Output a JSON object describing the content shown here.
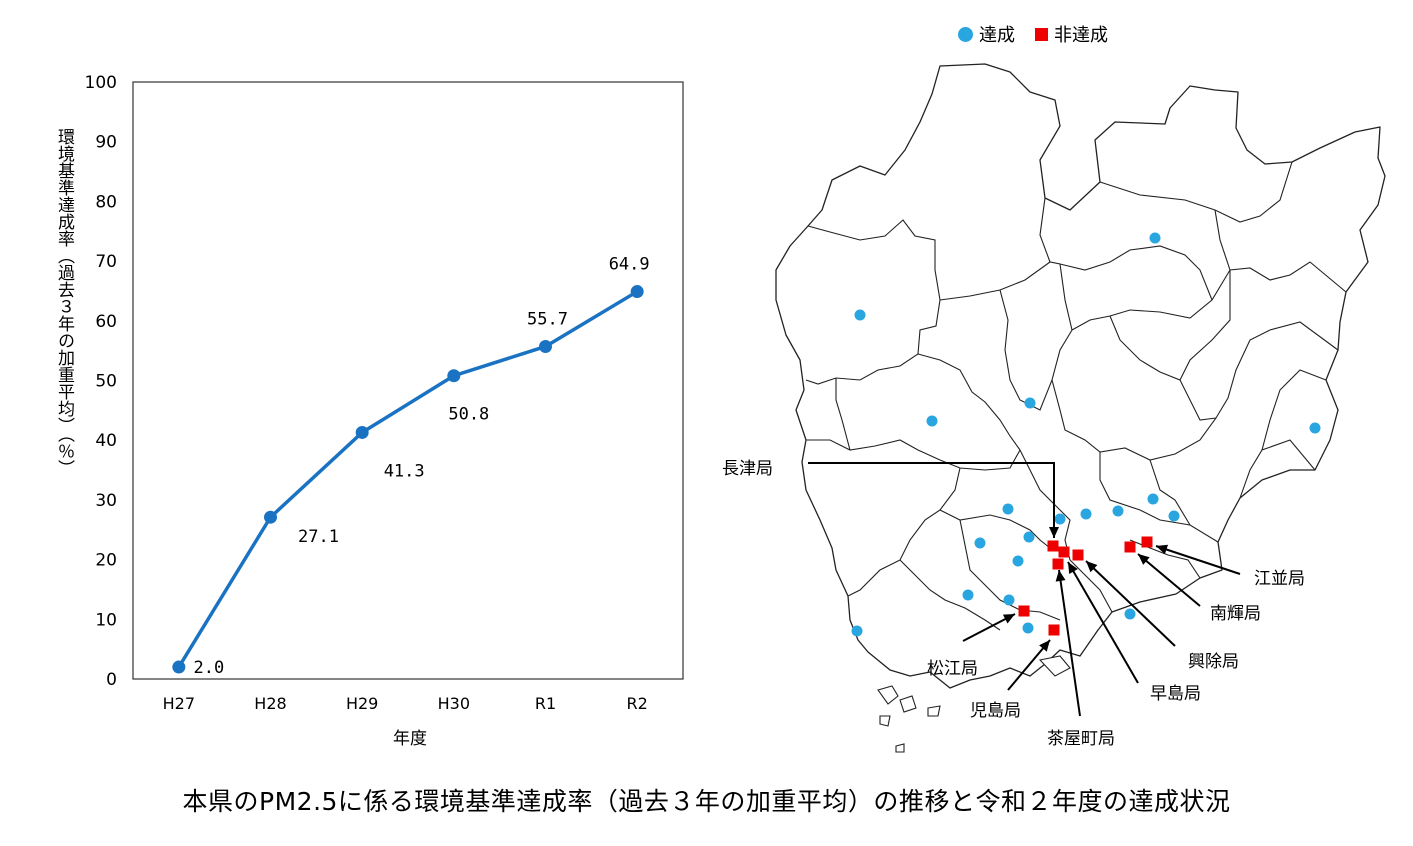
{
  "chart_data": {
    "type": "line",
    "categories": [
      "H27",
      "H28",
      "H29",
      "H30",
      "R1",
      "R2"
    ],
    "series": [
      {
        "values": [
          2.0,
          27.1,
          41.3,
          50.8,
          55.7,
          64.9
        ],
        "labels": [
          "2.0",
          "27.1",
          "41.3",
          "50.8",
          "55.7",
          "64.9"
        ]
      }
    ],
    "ylim": [
      0,
      100
    ],
    "yticks": [
      "0",
      "10",
      "20",
      "30",
      "40",
      "50",
      "60",
      "70",
      "80",
      "90",
      "100"
    ],
    "ylabel": "環境基準達成率（過去３年の加重平均）（％）",
    "xlabel": "年度",
    "line_color": "#1a73c2",
    "grid": false
  },
  "legend": {
    "achieved_label": "達成",
    "not_achieved_label": "非達成",
    "achieved_color": "#29a6e0",
    "not_achieved_color": "#ee0000"
  },
  "map": {
    "stations": {
      "nagatsu": "長津局",
      "enami": "江並局",
      "nanki": "南輝局",
      "kojo": "興除局",
      "hayashima": "早島局",
      "chayamachi": "茶屋町局",
      "kojima": "児島局",
      "matsue": "松江局"
    }
  },
  "caption": "本県のPM2.5に係る環境基準達成率（過去３年の加重平均）の推移と令和２年度の達成状況"
}
